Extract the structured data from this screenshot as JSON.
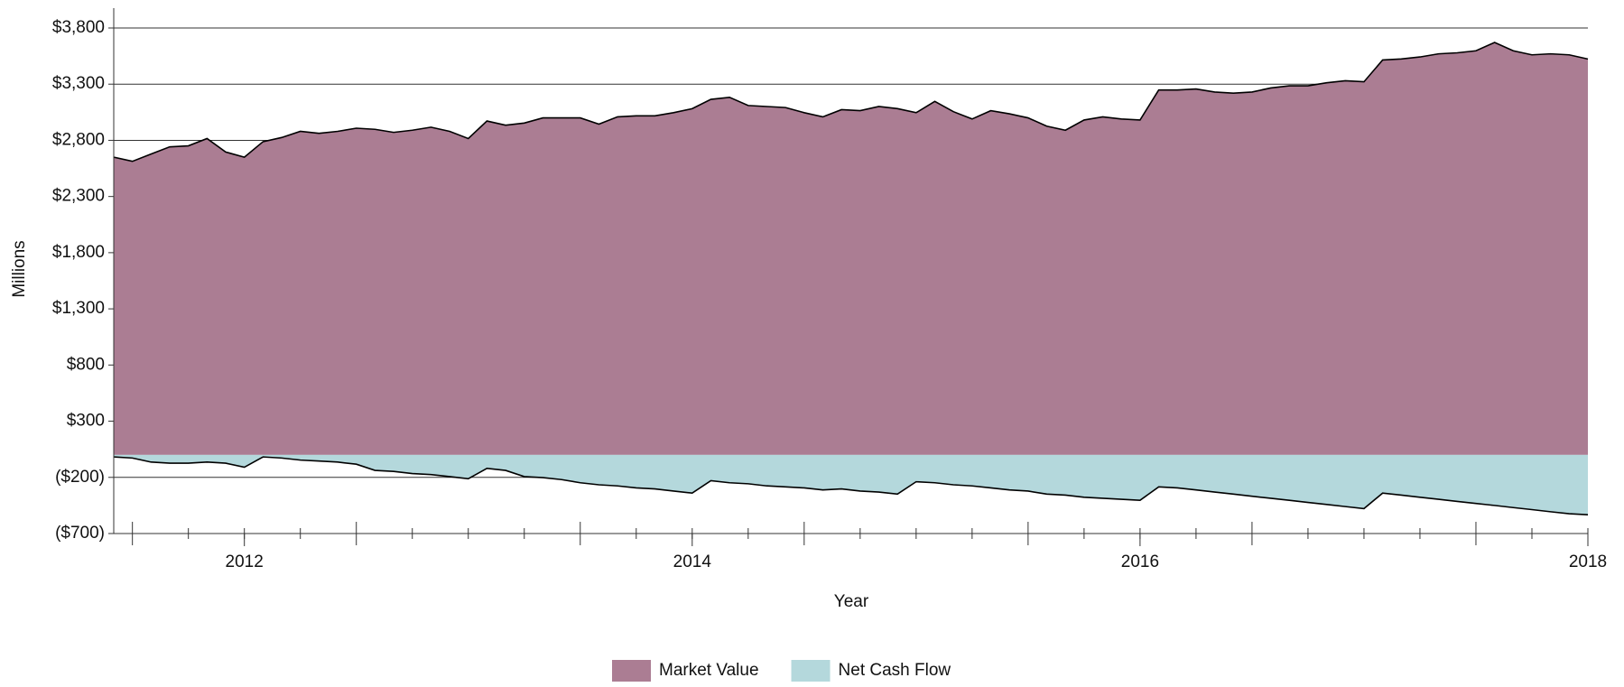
{
  "chart_data": {
    "type": "area",
    "x_label": "Year",
    "y_label": "Millions",
    "categories": [
      null,
      null,
      null,
      null,
      null,
      null,
      null,
      "2012",
      null,
      null,
      null,
      null,
      null,
      null,
      null,
      null,
      null,
      null,
      null,
      null,
      null,
      null,
      null,
      null,
      null,
      null,
      null,
      null,
      null,
      null,
      null,
      "2014",
      null,
      null,
      null,
      null,
      null,
      null,
      null,
      null,
      null,
      null,
      null,
      null,
      null,
      null,
      null,
      null,
      null,
      null,
      null,
      null,
      null,
      null,
      null,
      "2016",
      null,
      null,
      null,
      null,
      null,
      null,
      null,
      null,
      null,
      null,
      null,
      null,
      null,
      null,
      null,
      null,
      null,
      null,
      null,
      null,
      null,
      null,
      null,
      "2018"
    ],
    "series": [
      {
        "name": "Market Value",
        "color": "#ab7d93",
        "values": [
          2650,
          2613,
          2678,
          2742,
          2751,
          2816,
          2696,
          2650,
          2788,
          2825,
          2880,
          2862,
          2880,
          2908,
          2898,
          2871,
          2890,
          2917,
          2880,
          2816,
          2972,
          2935,
          2954,
          3000,
          3000,
          3000,
          2944,
          3009,
          3018,
          3018,
          3046,
          3082,
          3165,
          3183,
          3110,
          3101,
          3092,
          3046,
          3009,
          3073,
          3064,
          3101,
          3082,
          3046,
          3147,
          3055,
          2990,
          3064,
          3036,
          3000,
          2926,
          2890,
          2981,
          3009,
          2990,
          2981,
          3248,
          3248,
          3257,
          3230,
          3220,
          3230,
          3266,
          3285,
          3285,
          3312,
          3330,
          3321,
          3515,
          3524,
          3542,
          3570,
          3579,
          3597,
          3671,
          3597,
          3561,
          3570,
          3561,
          3524
        ]
      },
      {
        "name": "Net Cash Flow",
        "color": "#b4d8dc",
        "values": [
          -18,
          -28,
          -64,
          -74,
          -74,
          -64,
          -74,
          -110,
          -18,
          -28,
          -46,
          -55,
          -64,
          -83,
          -138,
          -147,
          -166,
          -175,
          -193,
          -212,
          -120,
          -138,
          -193,
          -202,
          -220,
          -248,
          -266,
          -276,
          -294,
          -303,
          -322,
          -340,
          -230,
          -248,
          -257,
          -276,
          -285,
          -294,
          -312,
          -303,
          -322,
          -331,
          -349,
          -239,
          -248,
          -266,
          -276,
          -294,
          -312,
          -322,
          -349,
          -358,
          -377,
          -386,
          -395,
          -404,
          -285,
          -294,
          -312,
          -331,
          -349,
          -368,
          -386,
          -404,
          -423,
          -441,
          -460,
          -478,
          -340,
          -358,
          -377,
          -395,
          -414,
          -432,
          -450,
          -469,
          -487,
          -506,
          -524,
          -533
        ]
      }
    ],
    "ylim": [
      -700,
      3800
    ],
    "yticks": [
      {
        "value": -700,
        "label": "($700)"
      },
      {
        "value": -200,
        "label": "($200)"
      },
      {
        "value": 300,
        "label": "$300"
      },
      {
        "value": 800,
        "label": "$800"
      },
      {
        "value": 1300,
        "label": "$1,300"
      },
      {
        "value": 1800,
        "label": "$1,800"
      },
      {
        "value": 2300,
        "label": "$2,300"
      },
      {
        "value": 2800,
        "label": "$2,800"
      },
      {
        "value": 3300,
        "label": "$3,300"
      },
      {
        "value": 3800,
        "label": "$3,800"
      }
    ],
    "grid": true,
    "legend": "bottom"
  }
}
